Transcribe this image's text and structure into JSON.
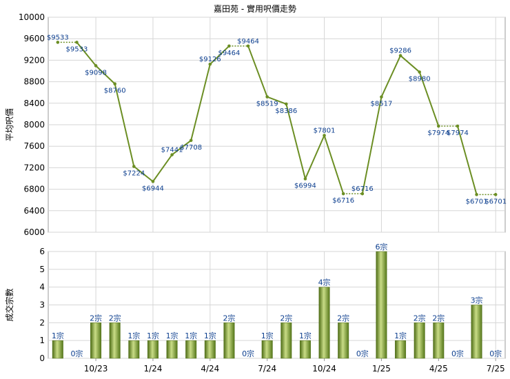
{
  "title": "嘉田苑 - 實用呎價走勢",
  "price_chart": {
    "type": "line",
    "ylabel": "平均呎價",
    "ylim": [
      6000,
      10000
    ],
    "yticks": [
      6000,
      6400,
      6800,
      7200,
      7600,
      8000,
      8400,
      8800,
      9200,
      9600,
      10000
    ],
    "color": "#6b8e23",
    "gap_color": "#6b8e23"
  },
  "volume_chart": {
    "type": "bar",
    "ylabel": "成交宗數",
    "ylim": [
      0,
      6
    ],
    "yticks": [
      0,
      1,
      2,
      3,
      4,
      5,
      6
    ],
    "unit": "宗",
    "color": "#6b8e23"
  },
  "x_tick_labels": [
    "10/23",
    "1/24",
    "4/24",
    "7/24",
    "10/24",
    "1/25",
    "4/25",
    "7/25"
  ],
  "chart_data": [
    {
      "type": "line",
      "title": "嘉田苑 - 實用呎價走勢",
      "ylabel": "平均呎價",
      "ylim": [
        6000,
        10000
      ],
      "categories": [
        "8/23",
        "9/23",
        "10/23",
        "11/23",
        "12/23",
        "1/24",
        "2/24",
        "3/24",
        "4/24",
        "5/24",
        "6/24",
        "7/24",
        "8/24",
        "9/24",
        "10/24",
        "11/24",
        "12/24",
        "1/25",
        "2/25",
        "3/25",
        "4/25",
        "5/25",
        "6/25",
        "7/25"
      ],
      "values": [
        9533,
        9533,
        9098,
        8760,
        7224,
        6944,
        7441,
        7708,
        9126,
        9464,
        9464,
        8519,
        8386,
        6994,
        7801,
        6716,
        6716,
        8517,
        9286,
        8980,
        7974,
        7974,
        6701,
        6701
      ],
      "labels": [
        "$9533",
        "$9533",
        "$9098",
        "$8760",
        "$7224",
        "$6944",
        "$7441",
        "$7708",
        "$9126",
        "$9464",
        "$9464",
        "$8519",
        "$8386",
        "$6994",
        "$7801",
        "$6716",
        "$6716",
        "$8517",
        "$9286",
        "$8980",
        "$7974",
        "$7974",
        "$6701",
        "$6701"
      ],
      "carried": [
        false,
        true,
        false,
        false,
        false,
        false,
        false,
        false,
        false,
        false,
        true,
        false,
        false,
        false,
        false,
        false,
        true,
        false,
        false,
        false,
        false,
        true,
        false,
        true
      ]
    },
    {
      "type": "bar",
      "ylabel": "成交宗數",
      "ylim": [
        0,
        6
      ],
      "categories": [
        "8/23",
        "9/23",
        "10/23",
        "11/23",
        "12/23",
        "1/24",
        "2/24",
        "3/24",
        "4/24",
        "5/24",
        "6/24",
        "7/24",
        "8/24",
        "9/24",
        "10/24",
        "11/24",
        "12/24",
        "1/25",
        "2/25",
        "3/25",
        "4/25",
        "5/25",
        "6/25",
        "7/25"
      ],
      "values": [
        1,
        0,
        2,
        2,
        1,
        1,
        1,
        1,
        1,
        2,
        0,
        1,
        2,
        1,
        4,
        2,
        0,
        6,
        1,
        2,
        2,
        0,
        3,
        0
      ],
      "labels": [
        "1宗",
        "0宗",
        "2宗",
        "2宗",
        "1宗",
        "1宗",
        "1宗",
        "1宗",
        "1宗",
        "2宗",
        "0宗",
        "1宗",
        "2宗",
        "1宗",
        "4宗",
        "2宗",
        "0宗",
        "6宗",
        "1宗",
        "2宗",
        "2宗",
        "0宗",
        "3宗",
        "0宗"
      ]
    }
  ]
}
